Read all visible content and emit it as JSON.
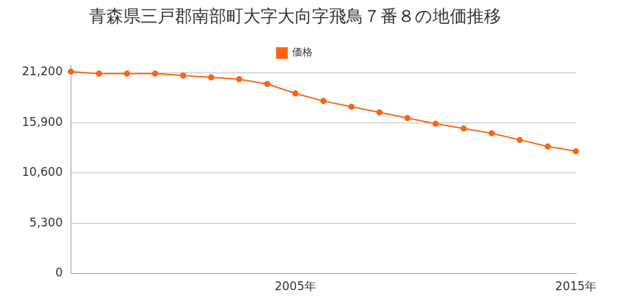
{
  "chart_data": {
    "type": "line",
    "title": "青森県三戸郡南部町大字大向字飛鳥７番８の地価推移",
    "categories": [
      null,
      null,
      null,
      null,
      null,
      null,
      null,
      null,
      "2005年",
      null,
      null,
      null,
      null,
      null,
      null,
      null,
      null,
      null,
      "2015年"
    ],
    "series": [
      {
        "name": "価格",
        "color": "#fa6414",
        "values": [
          21300,
          21100,
          21100,
          21100,
          20900,
          20700,
          20500,
          20000,
          19000,
          18200,
          17600,
          17000,
          16400,
          15800,
          15300,
          14800,
          14100,
          13400,
          12900
        ]
      }
    ],
    "ylim": [
      0,
      22000
    ],
    "yticks": [
      0,
      {
        "value": 5300,
        "label": "5,300"
      },
      {
        "value": 10600,
        "label": "10,600"
      },
      {
        "value": 15900,
        "label": "15,900"
      },
      {
        "value": 21200,
        "label": "21,200"
      }
    ],
    "grid": true,
    "legend": "top",
    "marker": "circle"
  }
}
